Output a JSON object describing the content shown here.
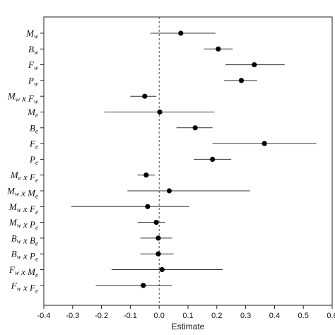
{
  "chart_data": {
    "type": "scatter",
    "subtype": "forest-plot",
    "xlabel": "Estimate",
    "ylabel": "",
    "title": "",
    "xlim": [
      -0.4,
      0.6
    ],
    "xticks": [
      "-0.4",
      "-0.3",
      "-0.2",
      "-0.1",
      "0.0",
      "0.1",
      "0.2",
      "0.3",
      "0.4",
      "0.5",
      "0.6"
    ],
    "reference_line": 0.0,
    "grid": false,
    "series": [
      {
        "points": [
          {
            "label": "M_w",
            "estimate": 0.075,
            "low": -0.03,
            "high": 0.195
          },
          {
            "label": "B_w",
            "estimate": 0.205,
            "low": 0.155,
            "high": 0.255
          },
          {
            "label": "F_w",
            "estimate": 0.33,
            "low": 0.23,
            "high": 0.435
          },
          {
            "label": "P_w",
            "estimate": 0.285,
            "low": 0.225,
            "high": 0.34
          },
          {
            "label": "M_w x F_w",
            "estimate": -0.05,
            "low": -0.1,
            "high": -0.01
          },
          {
            "label": "M_e",
            "estimate": 0.002,
            "low": -0.19,
            "high": 0.192
          },
          {
            "label": "B_e",
            "estimate": 0.125,
            "low": 0.06,
            "high": 0.185
          },
          {
            "label": "F_e",
            "estimate": 0.365,
            "low": 0.185,
            "high": 0.545
          },
          {
            "label": "P_e",
            "estimate": 0.185,
            "low": 0.12,
            "high": 0.25
          },
          {
            "label": "M_e x F_e",
            "estimate": -0.045,
            "low": -0.075,
            "high": -0.015
          },
          {
            "label": "M_w x M_e",
            "estimate": 0.035,
            "low": -0.11,
            "high": 0.315
          },
          {
            "label": "M_w x F_e",
            "estimate": -0.04,
            "low": -0.305,
            "high": 0.105
          },
          {
            "label": "M_w x P_e",
            "estimate": -0.01,
            "low": -0.075,
            "high": 0.02
          },
          {
            "label": "B_w x B_e",
            "estimate": -0.003,
            "low": -0.065,
            "high": 0.045
          },
          {
            "label": "B_w x P_e",
            "estimate": -0.003,
            "low": -0.065,
            "high": 0.05
          },
          {
            "label": "F_w x M_e",
            "estimate": 0.01,
            "low": -0.165,
            "high": 0.22
          },
          {
            "label": "F_w x F_e",
            "estimate": -0.055,
            "low": -0.22,
            "high": 0.045
          }
        ]
      }
    ]
  }
}
